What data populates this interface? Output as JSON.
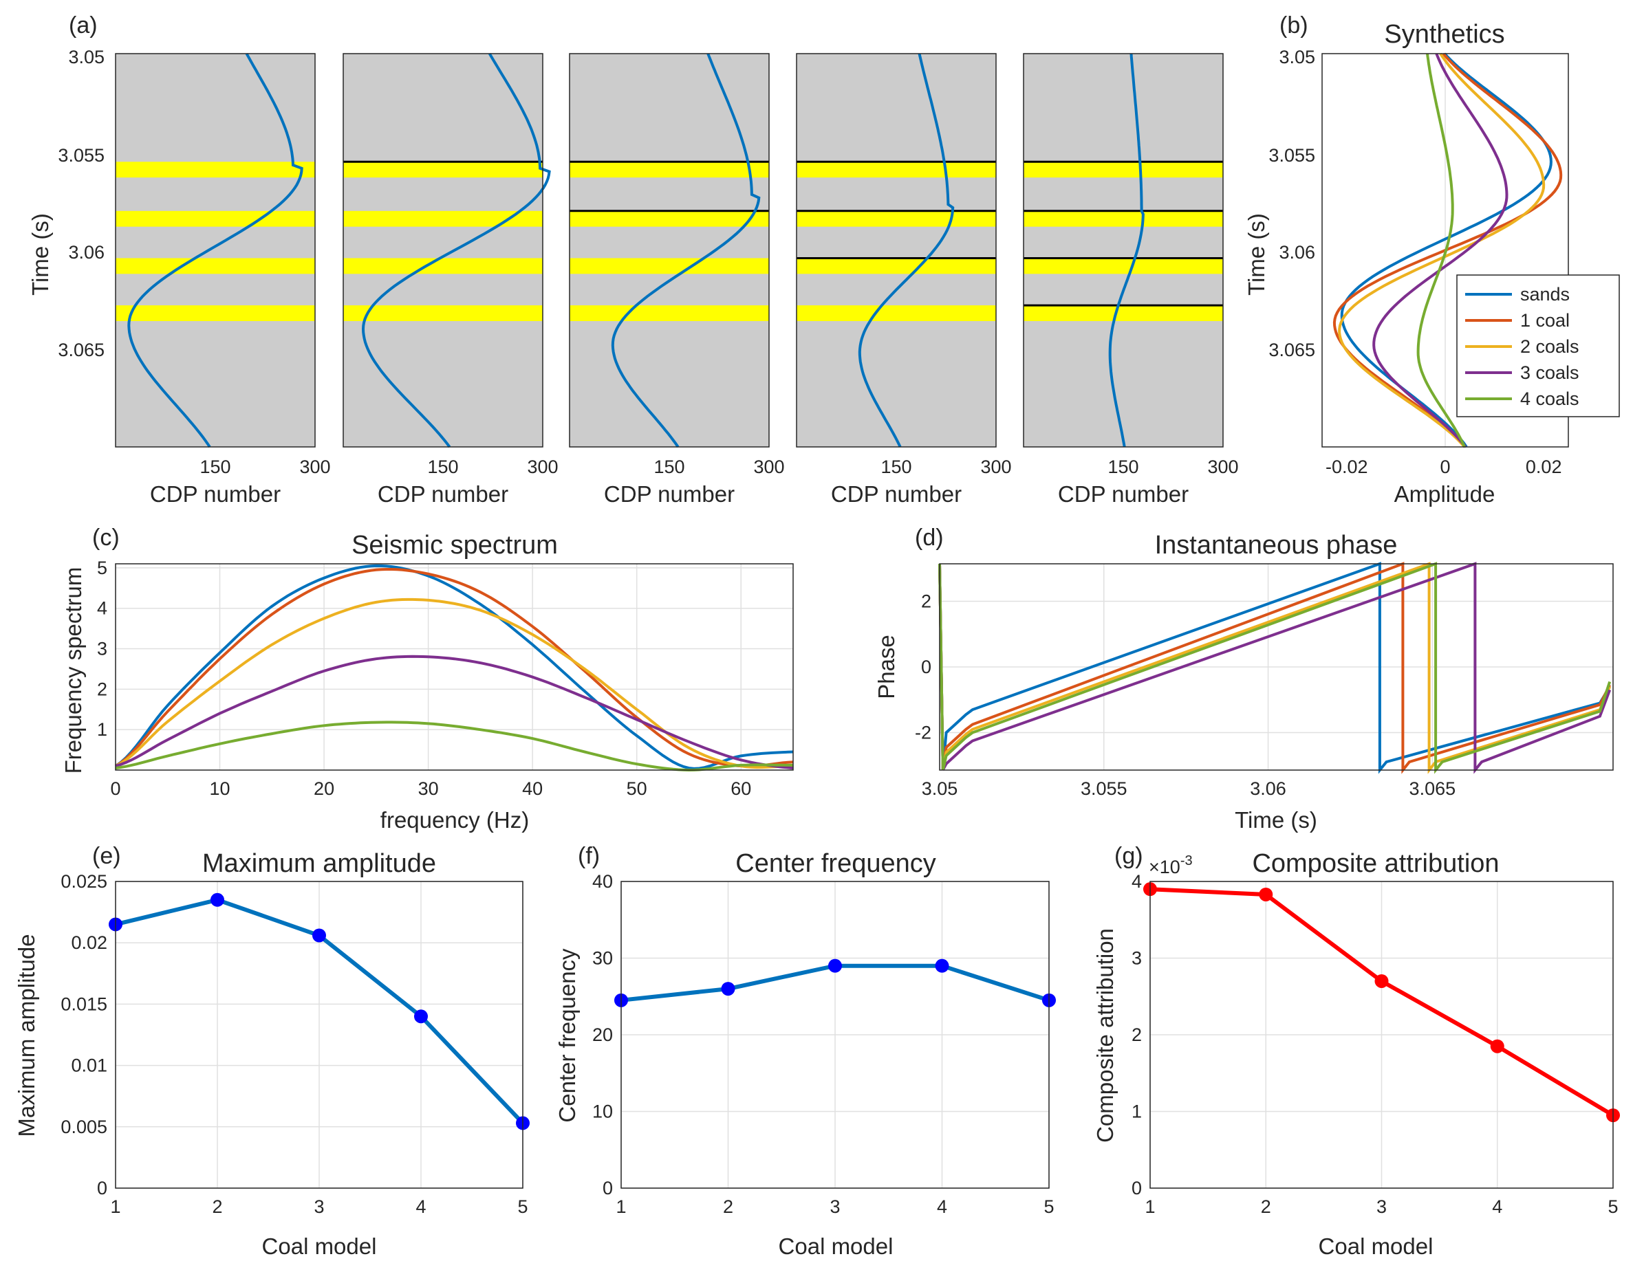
{
  "colors": {
    "blue": "#0072bd",
    "orange": "#d95319",
    "yellow": "#edb120",
    "purple": "#7e2f8e",
    "green": "#77ac30",
    "red": "#ff0000",
    "marker_blue": "#0000ff",
    "panel_gray": "#cccccc",
    "coal_yellow": "#ffff00",
    "grid": "#e0e0e0",
    "axis": "#262626"
  },
  "panels": {
    "a": {
      "label": "(a)",
      "ylabel": "Time (s)",
      "yticks": [
        "3.05",
        "3.055",
        "3.06",
        "3.065"
      ]
    },
    "b": {
      "label": "(b)",
      "title": "Synthetics",
      "ylabel": "Time (s)",
      "xlabel": "Amplitude"
    },
    "c": {
      "label": "(c)",
      "title": "Seismic spectrum",
      "ylabel": "Frequency spectrum",
      "xlabel": "frequency (Hz)"
    },
    "d": {
      "label": "(d)",
      "title": "Instantaneous phase",
      "ylabel": "Phase",
      "xlabel": "Time (s)"
    },
    "e": {
      "label": "(e)",
      "title": "Maximum amplitude",
      "ylabel": "Maximum amplitude",
      "xlabel": "Coal model"
    },
    "f": {
      "label": "(f)",
      "title": "Center frequency",
      "ylabel": "Center frequency",
      "xlabel": "Coal model"
    },
    "g": {
      "label": "(g)",
      "title": "Composite attribution",
      "ylabel": "Composite attribution",
      "xlabel": "Coal model",
      "exponent_base": "×10",
      "exponent_power": "-3"
    }
  },
  "chart_data": [
    {
      "id": "a",
      "type": "line",
      "title": "",
      "xlabel": "CDP number",
      "ylabel": "Time (s)",
      "xticks": [
        "150",
        "300"
      ],
      "xlim": [
        0,
        300
      ],
      "ylim": [
        3.05,
        3.07
      ],
      "y_reversed": true,
      "coal_layers_s": [
        [
          3.0555,
          3.0563
        ],
        [
          3.058,
          3.0588
        ],
        [
          3.0604,
          3.0612
        ],
        [
          3.0628,
          3.0636
        ]
      ],
      "panels": [
        {
          "model": "sands",
          "boundaries_s": [],
          "trace": {
            "center": 150,
            "amplitude": 130,
            "peak_s": 3.0558,
            "trough_s": 3.0638,
            "color": "blue"
          }
        },
        {
          "model": "1 coal",
          "boundaries_s": [
            3.0555
          ],
          "trace": {
            "center": 170,
            "amplitude": 140,
            "peak_s": 3.0559,
            "trough_s": 3.064,
            "color": "blue"
          }
        },
        {
          "model": "2 coals",
          "boundaries_s": [
            3.0555,
            3.058
          ],
          "trace": {
            "center": 175,
            "amplitude": 110,
            "peak_s": 3.0572,
            "trough_s": 3.0648,
            "color": "blue"
          }
        },
        {
          "model": "3 coals",
          "boundaries_s": [
            3.0555,
            3.058,
            3.0604
          ],
          "trace": {
            "center": 165,
            "amplitude": 70,
            "peak_s": 3.0578,
            "trough_s": 3.0652,
            "color": "blue"
          }
        },
        {
          "model": "4 coals",
          "boundaries_s": [
            3.0555,
            3.058,
            3.0604,
            3.0628
          ],
          "trace": {
            "center": 155,
            "amplitude": 25,
            "peak_s": 3.058,
            "trough_s": 3.0652,
            "color": "blue"
          }
        }
      ]
    },
    {
      "id": "b",
      "type": "line",
      "title": "Synthetics",
      "xlabel": "Amplitude",
      "ylabel": "Time (s)",
      "xlim": [
        -0.025,
        0.025
      ],
      "ylim": [
        3.05,
        3.07
      ],
      "y_reversed": true,
      "xticks": [
        "-0.02",
        "0",
        "0.02"
      ],
      "legend": "right",
      "series": [
        {
          "name": "sands",
          "color": "blue",
          "peak_amp": 0.0215,
          "peak_s": 3.0555,
          "trough_amp": -0.021,
          "trough_s": 3.0633,
          "center": 0.0
        },
        {
          "name": "1 coal",
          "color": "orange",
          "peak_amp": 0.0235,
          "peak_s": 3.0562,
          "trough_amp": -0.0225,
          "trough_s": 3.0637,
          "center": 0.0
        },
        {
          "name": "2 coals",
          "color": "yellow",
          "peak_amp": 0.02,
          "peak_s": 3.0567,
          "trough_amp": -0.0215,
          "trough_s": 3.0641,
          "center": 0.0
        },
        {
          "name": "3 coals",
          "color": "purple",
          "peak_amp": 0.0125,
          "peak_s": 3.0572,
          "trough_amp": -0.0145,
          "trough_s": 3.0648,
          "center": 0.0
        },
        {
          "name": "4 coals",
          "color": "green",
          "peak_amp": 0.0025,
          "peak_s": 3.0579,
          "trough_amp": -0.0045,
          "trough_s": 3.0652,
          "center": -0.001
        }
      ]
    },
    {
      "id": "c",
      "type": "line",
      "title": "Seismic spectrum",
      "xlabel": "frequency (Hz)",
      "ylabel": "Frequency spectrum",
      "xlim": [
        0,
        65
      ],
      "ylim": [
        0,
        5.1
      ],
      "xticks": [
        "0",
        "10",
        "20",
        "30",
        "40",
        "50",
        "60"
      ],
      "yticks": [
        "1",
        "2",
        "3",
        "4",
        "5"
      ],
      "grid": true,
      "series": [
        {
          "name": "sands",
          "color": "blue",
          "x": [
            0,
            5,
            10,
            15,
            20,
            25,
            30,
            35,
            40,
            45,
            50,
            55,
            60,
            65
          ],
          "y": [
            0.1,
            1.6,
            2.9,
            4.05,
            4.75,
            5.05,
            4.8,
            4.1,
            3.1,
            1.95,
            0.85,
            0.05,
            0.35,
            0.45
          ]
        },
        {
          "name": "1 coal",
          "color": "orange",
          "x": [
            0,
            5,
            10,
            15,
            20,
            25,
            30,
            35,
            40,
            45,
            50,
            55,
            60,
            65
          ],
          "y": [
            0.1,
            1.45,
            2.75,
            3.85,
            4.6,
            4.95,
            4.85,
            4.4,
            3.55,
            2.45,
            1.3,
            0.4,
            0.1,
            0.2
          ]
        },
        {
          "name": "2 coals",
          "color": "yellow",
          "x": [
            0,
            5,
            10,
            15,
            20,
            25,
            30,
            35,
            40,
            45,
            50,
            55,
            60,
            65
          ],
          "y": [
            0.1,
            1.2,
            2.2,
            3.1,
            3.75,
            4.15,
            4.2,
            3.95,
            3.35,
            2.5,
            1.5,
            0.55,
            0.1,
            0.1
          ]
        },
        {
          "name": "3 coals",
          "color": "purple",
          "x": [
            0,
            5,
            10,
            15,
            20,
            25,
            30,
            35,
            40,
            45,
            50,
            55,
            60,
            65
          ],
          "y": [
            0.1,
            0.75,
            1.4,
            1.95,
            2.45,
            2.75,
            2.8,
            2.65,
            2.3,
            1.8,
            1.25,
            0.7,
            0.25,
            0.05
          ]
        },
        {
          "name": "4 coals",
          "color": "green",
          "x": [
            0,
            5,
            10,
            15,
            20,
            25,
            30,
            35,
            40,
            45,
            50,
            55,
            60,
            65
          ],
          "y": [
            0.05,
            0.35,
            0.65,
            0.9,
            1.1,
            1.18,
            1.15,
            1.0,
            0.78,
            0.45,
            0.15,
            0.0,
            0.12,
            0.12
          ]
        }
      ]
    },
    {
      "id": "d",
      "type": "line",
      "title": "Instantaneous phase",
      "xlabel": "Time (s)",
      "ylabel": "Phase",
      "xlim": [
        3.05,
        3.0705
      ],
      "ylim": [
        -3.14,
        3.14
      ],
      "xticks": [
        "3.05",
        "3.055",
        "3.06",
        "3.065"
      ],
      "yticks": [
        "-2",
        "0",
        "2"
      ],
      "grid": true,
      "series": [
        {
          "name": "sands",
          "color": "blue",
          "start_phase": -1.3,
          "wrap_s": 3.0634,
          "end_phase": -1.1
        },
        {
          "name": "1 coal",
          "color": "orange",
          "start_phase": -1.75,
          "wrap_s": 3.0641,
          "end_phase": -1.15
        },
        {
          "name": "2 coals",
          "color": "yellow",
          "start_phase": -1.9,
          "wrap_s": 3.0649,
          "end_phase": -1.3
        },
        {
          "name": "3 coals",
          "color": "purple",
          "start_phase": -2.25,
          "wrap_s": 3.0663,
          "end_phase": -1.5
        },
        {
          "name": "4 coals",
          "color": "green",
          "start_phase": -2.0,
          "wrap_s": 3.0651,
          "end_phase": -1.35
        }
      ]
    },
    {
      "id": "e",
      "type": "line",
      "title": "Maximum amplitude",
      "xlabel": "Coal model",
      "ylabel": "Maximum amplitude",
      "x": [
        1,
        2,
        3,
        4,
        5
      ],
      "values": [
        0.0215,
        0.0235,
        0.0206,
        0.014,
        0.0053
      ],
      "xlim": [
        1,
        5
      ],
      "ylim": [
        0,
        0.025
      ],
      "xticks": [
        "1",
        "2",
        "3",
        "4",
        "5"
      ],
      "yticks": [
        "0",
        "0.005",
        "0.01",
        "0.015",
        "0.02",
        "0.025"
      ],
      "grid": true,
      "color": "blue",
      "marker_color": "marker_blue"
    },
    {
      "id": "f",
      "type": "line",
      "title": "Center frequency",
      "xlabel": "Coal model",
      "ylabel": "Center frequency",
      "x": [
        1,
        2,
        3,
        4,
        5
      ],
      "values": [
        24.5,
        26,
        29,
        29,
        24.5
      ],
      "xlim": [
        1,
        5
      ],
      "ylim": [
        0,
        40
      ],
      "xticks": [
        "1",
        "2",
        "3",
        "4",
        "5"
      ],
      "yticks": [
        "0",
        "10",
        "20",
        "30",
        "40"
      ],
      "grid": true,
      "color": "blue",
      "marker_color": "marker_blue"
    },
    {
      "id": "g",
      "type": "line",
      "title": "Composite attribution",
      "xlabel": "Coal model",
      "ylabel": "Composite attribution",
      "x": [
        1,
        2,
        3,
        4,
        5
      ],
      "values": [
        3.9,
        3.83,
        2.7,
        1.85,
        0.95
      ],
      "xlim": [
        1,
        5
      ],
      "ylim": [
        0,
        4
      ],
      "xticks": [
        "1",
        "2",
        "3",
        "4",
        "5"
      ],
      "yticks": [
        "0",
        "1",
        "2",
        "3",
        "4"
      ],
      "grid": true,
      "color": "red",
      "marker_color": "red"
    }
  ]
}
